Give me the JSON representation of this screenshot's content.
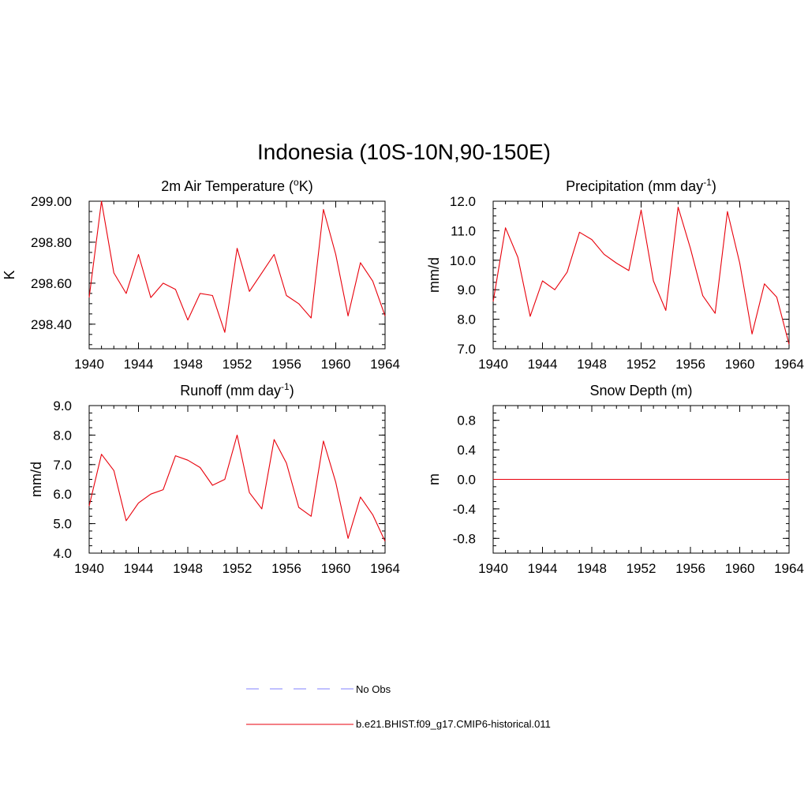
{
  "figure": {
    "title": "Indonesia (10S-10N,90-150E)",
    "line_color": "#e8000b",
    "obs_color": "#9b9bff"
  },
  "legend": {
    "obs_label": "No Obs",
    "model_label": "b.e21.BHIST.f09_g17.CMIP6-historical.011",
    "placement": "bottom-center"
  },
  "chart_data": [
    {
      "type": "line",
      "title": "2m Air Temperature (",
      "title_sup": "o",
      "title_after": "K)",
      "xlabel": "",
      "ylabel": "K",
      "xlim": [
        1940,
        1964
      ],
      "ylim": [
        298.28,
        299.0
      ],
      "xticks": [
        "1940",
        "1944",
        "1948",
        "1952",
        "1956",
        "1960",
        "1964"
      ],
      "yticks": [
        "298.40",
        "298.60",
        "298.80",
        "299.00"
      ],
      "ytick_values": [
        298.4,
        298.6,
        298.8,
        299.0
      ],
      "minor_y_step": 0.05,
      "x": [
        1940,
        1941,
        1942,
        1943,
        1944,
        1945,
        1946,
        1947,
        1948,
        1949,
        1950,
        1951,
        1952,
        1953,
        1954,
        1955,
        1956,
        1957,
        1958,
        1959,
        1960,
        1961,
        1962,
        1963,
        1964
      ],
      "series": [
        {
          "values": [
            298.53,
            299.0,
            298.65,
            298.55,
            298.74,
            298.53,
            298.6,
            298.57,
            298.42,
            298.55,
            298.54,
            298.36,
            298.77,
            298.56,
            298.65,
            298.74,
            298.54,
            298.5,
            298.43,
            298.96,
            298.74,
            298.44,
            298.7,
            298.61,
            298.44
          ]
        }
      ]
    },
    {
      "type": "line",
      "title": "Precipitation (mm day",
      "title_sup": "-1",
      "title_after": ")",
      "xlabel": "",
      "ylabel": "mm/d",
      "xlim": [
        1940,
        1964
      ],
      "ylim": [
        7.0,
        12.0
      ],
      "xticks": [
        "1940",
        "1944",
        "1948",
        "1952",
        "1956",
        "1960",
        "1964"
      ],
      "yticks": [
        "7.0",
        "8.0",
        "9.0",
        "10.0",
        "11.0",
        "12.0"
      ],
      "ytick_values": [
        7,
        8,
        9,
        10,
        11,
        12
      ],
      "minor_y_step": 0.25,
      "x": [
        1940,
        1941,
        1942,
        1943,
        1944,
        1945,
        1946,
        1947,
        1948,
        1949,
        1950,
        1951,
        1952,
        1953,
        1954,
        1955,
        1956,
        1957,
        1958,
        1959,
        1960,
        1961,
        1962,
        1963,
        1964
      ],
      "series": [
        {
          "values": [
            8.6,
            11.1,
            10.1,
            8.1,
            9.3,
            9.0,
            9.6,
            10.95,
            10.7,
            10.2,
            9.9,
            9.65,
            11.7,
            9.3,
            8.3,
            11.8,
            10.4,
            8.8,
            8.2,
            11.65,
            9.9,
            7.5,
            9.2,
            8.75,
            7.15
          ]
        }
      ]
    },
    {
      "type": "line",
      "title": "Runoff (mm day",
      "title_sup": "-1",
      "title_after": ")",
      "xlabel": "",
      "ylabel": "mm/d",
      "xlim": [
        1940,
        1964
      ],
      "ylim": [
        4.0,
        9.0
      ],
      "xticks": [
        "1940",
        "1944",
        "1948",
        "1952",
        "1956",
        "1960",
        "1964"
      ],
      "yticks": [
        "4.0",
        "5.0",
        "6.0",
        "7.0",
        "8.0",
        "9.0"
      ],
      "ytick_values": [
        4,
        5,
        6,
        7,
        8,
        9
      ],
      "minor_y_step": 0.25,
      "x": [
        1940,
        1941,
        1942,
        1943,
        1944,
        1945,
        1946,
        1947,
        1948,
        1949,
        1950,
        1951,
        1952,
        1953,
        1954,
        1955,
        1956,
        1957,
        1958,
        1959,
        1960,
        1961,
        1962,
        1963,
        1964
      ],
      "series": [
        {
          "values": [
            5.6,
            7.35,
            6.8,
            5.1,
            5.7,
            6.0,
            6.15,
            7.3,
            7.15,
            6.9,
            6.3,
            6.5,
            8.0,
            6.05,
            5.5,
            7.85,
            7.05,
            5.55,
            5.25,
            7.8,
            6.4,
            4.5,
            5.9,
            5.3,
            4.4
          ]
        }
      ]
    },
    {
      "type": "line",
      "title": "Snow Depth (m)",
      "title_sup": "",
      "title_after": "",
      "xlabel": "",
      "ylabel": "m",
      "xlim": [
        1940,
        1964
      ],
      "ylim": [
        -1.0,
        1.0
      ],
      "xticks": [
        "1940",
        "1944",
        "1948",
        "1952",
        "1956",
        "1960",
        "1964"
      ],
      "yticks": [
        "-0.8",
        "-0.4",
        "0.0",
        "0.4",
        "0.8"
      ],
      "ytick_values": [
        -0.8,
        -0.4,
        0.0,
        0.4,
        0.8
      ],
      "minor_y_step": 0.1,
      "x": [
        1940,
        1941,
        1942,
        1943,
        1944,
        1945,
        1946,
        1947,
        1948,
        1949,
        1950,
        1951,
        1952,
        1953,
        1954,
        1955,
        1956,
        1957,
        1958,
        1959,
        1960,
        1961,
        1962,
        1963,
        1964
      ],
      "series": [
        {
          "values": [
            0,
            0,
            0,
            0,
            0,
            0,
            0,
            0,
            0,
            0,
            0,
            0,
            0,
            0,
            0,
            0,
            0,
            0,
            0,
            0,
            0,
            0,
            0,
            0,
            0
          ]
        }
      ]
    }
  ]
}
